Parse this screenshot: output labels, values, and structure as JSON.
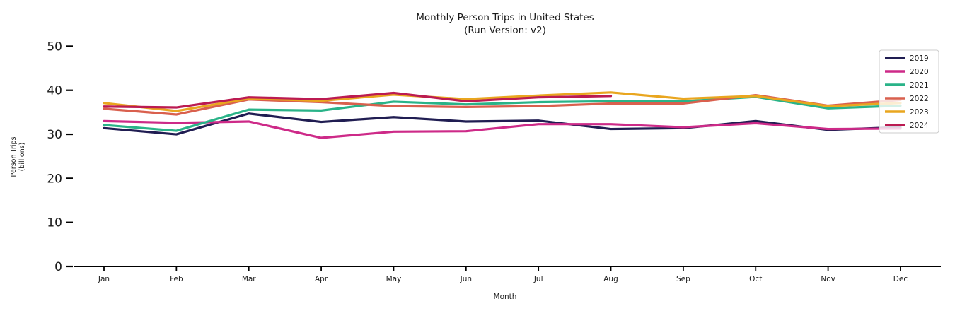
{
  "figure": {
    "title_line1": "Monthly Person Trips in United States",
    "title_line2": "(Run Version: v2)",
    "background": "#ffffff",
    "text_color": "#1a1a1a",
    "axis_color": "#000000"
  },
  "chart_data": {
    "type": "line",
    "title": "Monthly Person Trips in United States (Run Version: v2)",
    "xlabel": "Month",
    "ylabel_line1": "Person Trips",
    "ylabel_line2": "(billions)",
    "x_categories": [
      "Jan",
      "Feb",
      "Mar",
      "Apr",
      "May",
      "Jun",
      "Jul",
      "Aug",
      "Sep",
      "Oct",
      "Nov",
      "Dec"
    ],
    "y_ticks": [
      0,
      10,
      20,
      30,
      40,
      50
    ],
    "ylim": [
      0,
      54
    ],
    "grid": false,
    "legend_position": "upper-right",
    "series": [
      {
        "name": "2019",
        "color": "#201d52",
        "values": [
          31.4,
          30.0,
          34.7,
          32.8,
          33.9,
          32.9,
          33.1,
          31.2,
          31.4,
          33.0,
          31.0,
          31.6
        ]
      },
      {
        "name": "2020",
        "color": "#cd2a88",
        "values": [
          33.0,
          32.6,
          32.9,
          29.2,
          30.6,
          30.7,
          32.3,
          32.3,
          31.6,
          32.5,
          31.2,
          31.3
        ]
      },
      {
        "name": "2021",
        "color": "#29b388",
        "values": [
          32.1,
          30.8,
          35.6,
          35.4,
          37.4,
          36.8,
          37.3,
          37.5,
          37.5,
          38.5,
          35.9,
          36.5
        ]
      },
      {
        "name": "2022",
        "color": "#d9604e",
        "values": [
          35.8,
          34.5,
          37.9,
          37.3,
          36.4,
          36.2,
          36.4,
          37.0,
          37.0,
          38.9,
          36.5,
          37.8
        ]
      },
      {
        "name": "2023",
        "color": "#e9a61f",
        "values": [
          37.1,
          35.3,
          38.1,
          37.6,
          39.0,
          38.0,
          38.8,
          39.5,
          38.1,
          38.7,
          36.4,
          37.1
        ]
      },
      {
        "name": "2024",
        "color": "#bb1b52",
        "values": [
          36.3,
          36.1,
          38.4,
          38.0,
          39.4,
          37.5,
          38.4,
          38.7,
          null,
          null,
          null,
          null
        ]
      }
    ]
  }
}
